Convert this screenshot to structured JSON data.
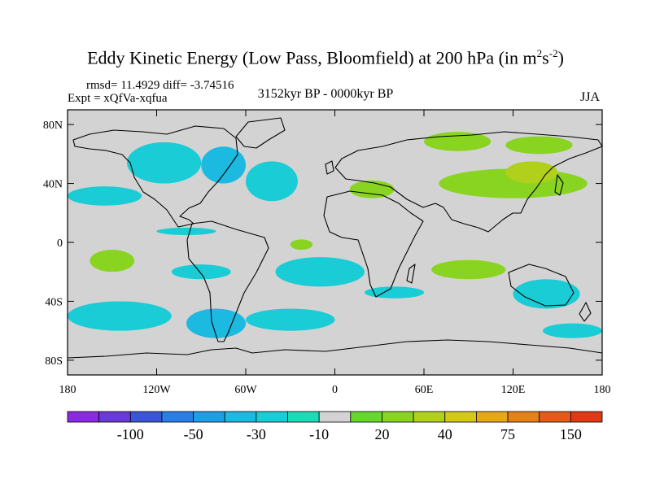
{
  "figure": {
    "title_main": "Eddy Kinetic Energy (Low Pass, Bloomfield) at 200 hPa (in m",
    "title_sup1": "2",
    "title_mid": "s",
    "title_sup2": "-2",
    "title_end": ")",
    "stats": "rmsd= 11.4929 diff= -3.74516",
    "experiment": "Expt = xQfVa-xqfua",
    "period": "3152kyr BP - 0000kyr BP",
    "season": "JJA"
  },
  "map": {
    "projection": "cylindrical equidistant",
    "lon_range": [
      -180,
      180
    ],
    "lat_range": [
      -90,
      90
    ],
    "background_color": "#d3d3d3",
    "coastline_color": "#000000",
    "lat_ticks": [
      {
        "value": 80,
        "label": "80N"
      },
      {
        "value": 40,
        "label": "40N"
      },
      {
        "value": 0,
        "label": "0"
      },
      {
        "value": -40,
        "label": "40S"
      },
      {
        "value": -80,
        "label": "80S"
      }
    ],
    "lon_ticks": [
      {
        "value": -180,
        "label": "180"
      },
      {
        "value": -120,
        "label": "120W"
      },
      {
        "value": -60,
        "label": "60W"
      },
      {
        "value": 0,
        "label": "0"
      },
      {
        "value": 60,
        "label": "60E"
      },
      {
        "value": 120,
        "label": "120E"
      },
      {
        "value": 180,
        "label": "180"
      }
    ]
  },
  "colorbar": {
    "colors": [
      "#8a2be2",
      "#6a3ad8",
      "#3a55d8",
      "#2a7ee8",
      "#1f9ee6",
      "#1cb9e0",
      "#19ccd6",
      "#1cdcb8",
      "#d3d3d3",
      "#66d82a",
      "#88d420",
      "#b0d01c",
      "#d4c818",
      "#e6a818",
      "#e68018",
      "#e65a18",
      "#e03a14"
    ],
    "labels": [
      "-100",
      "-50",
      "-30",
      "-10",
      "20",
      "40",
      "75",
      "150"
    ]
  },
  "regions": [
    {
      "lon": [
        -180,
        -130
      ],
      "lat": [
        38,
        25
      ],
      "level": "-10",
      "color": "#19ccd6"
    },
    {
      "lon": [
        -140,
        -90
      ],
      "lat": [
        68,
        40
      ],
      "level": "-10",
      "color": "#19ccd6"
    },
    {
      "lon": [
        -90,
        -60
      ],
      "lat": [
        65,
        40
      ],
      "level": "-30",
      "color": "#1cb9e0"
    },
    {
      "lon": [
        -60,
        -25
      ],
      "lat": [
        55,
        28
      ],
      "level": "-10",
      "color": "#19ccd6"
    },
    {
      "lon": [
        -120,
        -80
      ],
      "lat": [
        5,
        10
      ],
      "level": "-10",
      "color": "#19ccd6"
    },
    {
      "lon": [
        -165,
        -135
      ],
      "lat": [
        -5,
        -20
      ],
      "level": "20",
      "color": "#88d420"
    },
    {
      "lon": [
        -110,
        -70
      ],
      "lat": [
        -15,
        -25
      ],
      "level": "-10",
      "color": "#19ccd6"
    },
    {
      "lon": [
        -40,
        20
      ],
      "lat": [
        -10,
        -30
      ],
      "level": "-10",
      "color": "#19ccd6"
    },
    {
      "lon": [
        -180,
        -110
      ],
      "lat": [
        -40,
        -60
      ],
      "level": "-10",
      "color": "#19ccd6"
    },
    {
      "lon": [
        -100,
        -60
      ],
      "lat": [
        -45,
        -65
      ],
      "level": "-30",
      "color": "#1cb9e0"
    },
    {
      "lon": [
        -60,
        0
      ],
      "lat": [
        -45,
        -60
      ],
      "level": "-10",
      "color": "#19ccd6"
    },
    {
      "lon": [
        20,
        60
      ],
      "lat": [
        -30,
        -38
      ],
      "level": "-10",
      "color": "#19ccd6"
    },
    {
      "lon": [
        120,
        165
      ],
      "lat": [
        -25,
        -45
      ],
      "level": "-10",
      "color": "#19ccd6"
    },
    {
      "lon": [
        140,
        180
      ],
      "lat": [
        -55,
        -65
      ],
      "level": "-10",
      "color": "#19ccd6"
    },
    {
      "lon": [
        60,
        105
      ],
      "lat": [
        75,
        62
      ],
      "level": "20",
      "color": "#88d420"
    },
    {
      "lon": [
        115,
        160
      ],
      "lat": [
        72,
        60
      ],
      "level": "20",
      "color": "#88d420"
    },
    {
      "lon": [
        10,
        40
      ],
      "lat": [
        42,
        30
      ],
      "level": "20",
      "color": "#88d420"
    },
    {
      "lon": [
        70,
        170
      ],
      "lat": [
        50,
        30
      ],
      "level": "20",
      "color": "#88d420"
    },
    {
      "lon": [
        115,
        150
      ],
      "lat": [
        55,
        40
      ],
      "level": "40",
      "color": "#b0d01c"
    },
    {
      "lon": [
        -30,
        -15
      ],
      "lat": [
        2,
        -5
      ],
      "level": "20",
      "color": "#88d420"
    },
    {
      "lon": [
        65,
        115
      ],
      "lat": [
        -12,
        -25
      ],
      "level": "20",
      "color": "#88d420"
    }
  ]
}
